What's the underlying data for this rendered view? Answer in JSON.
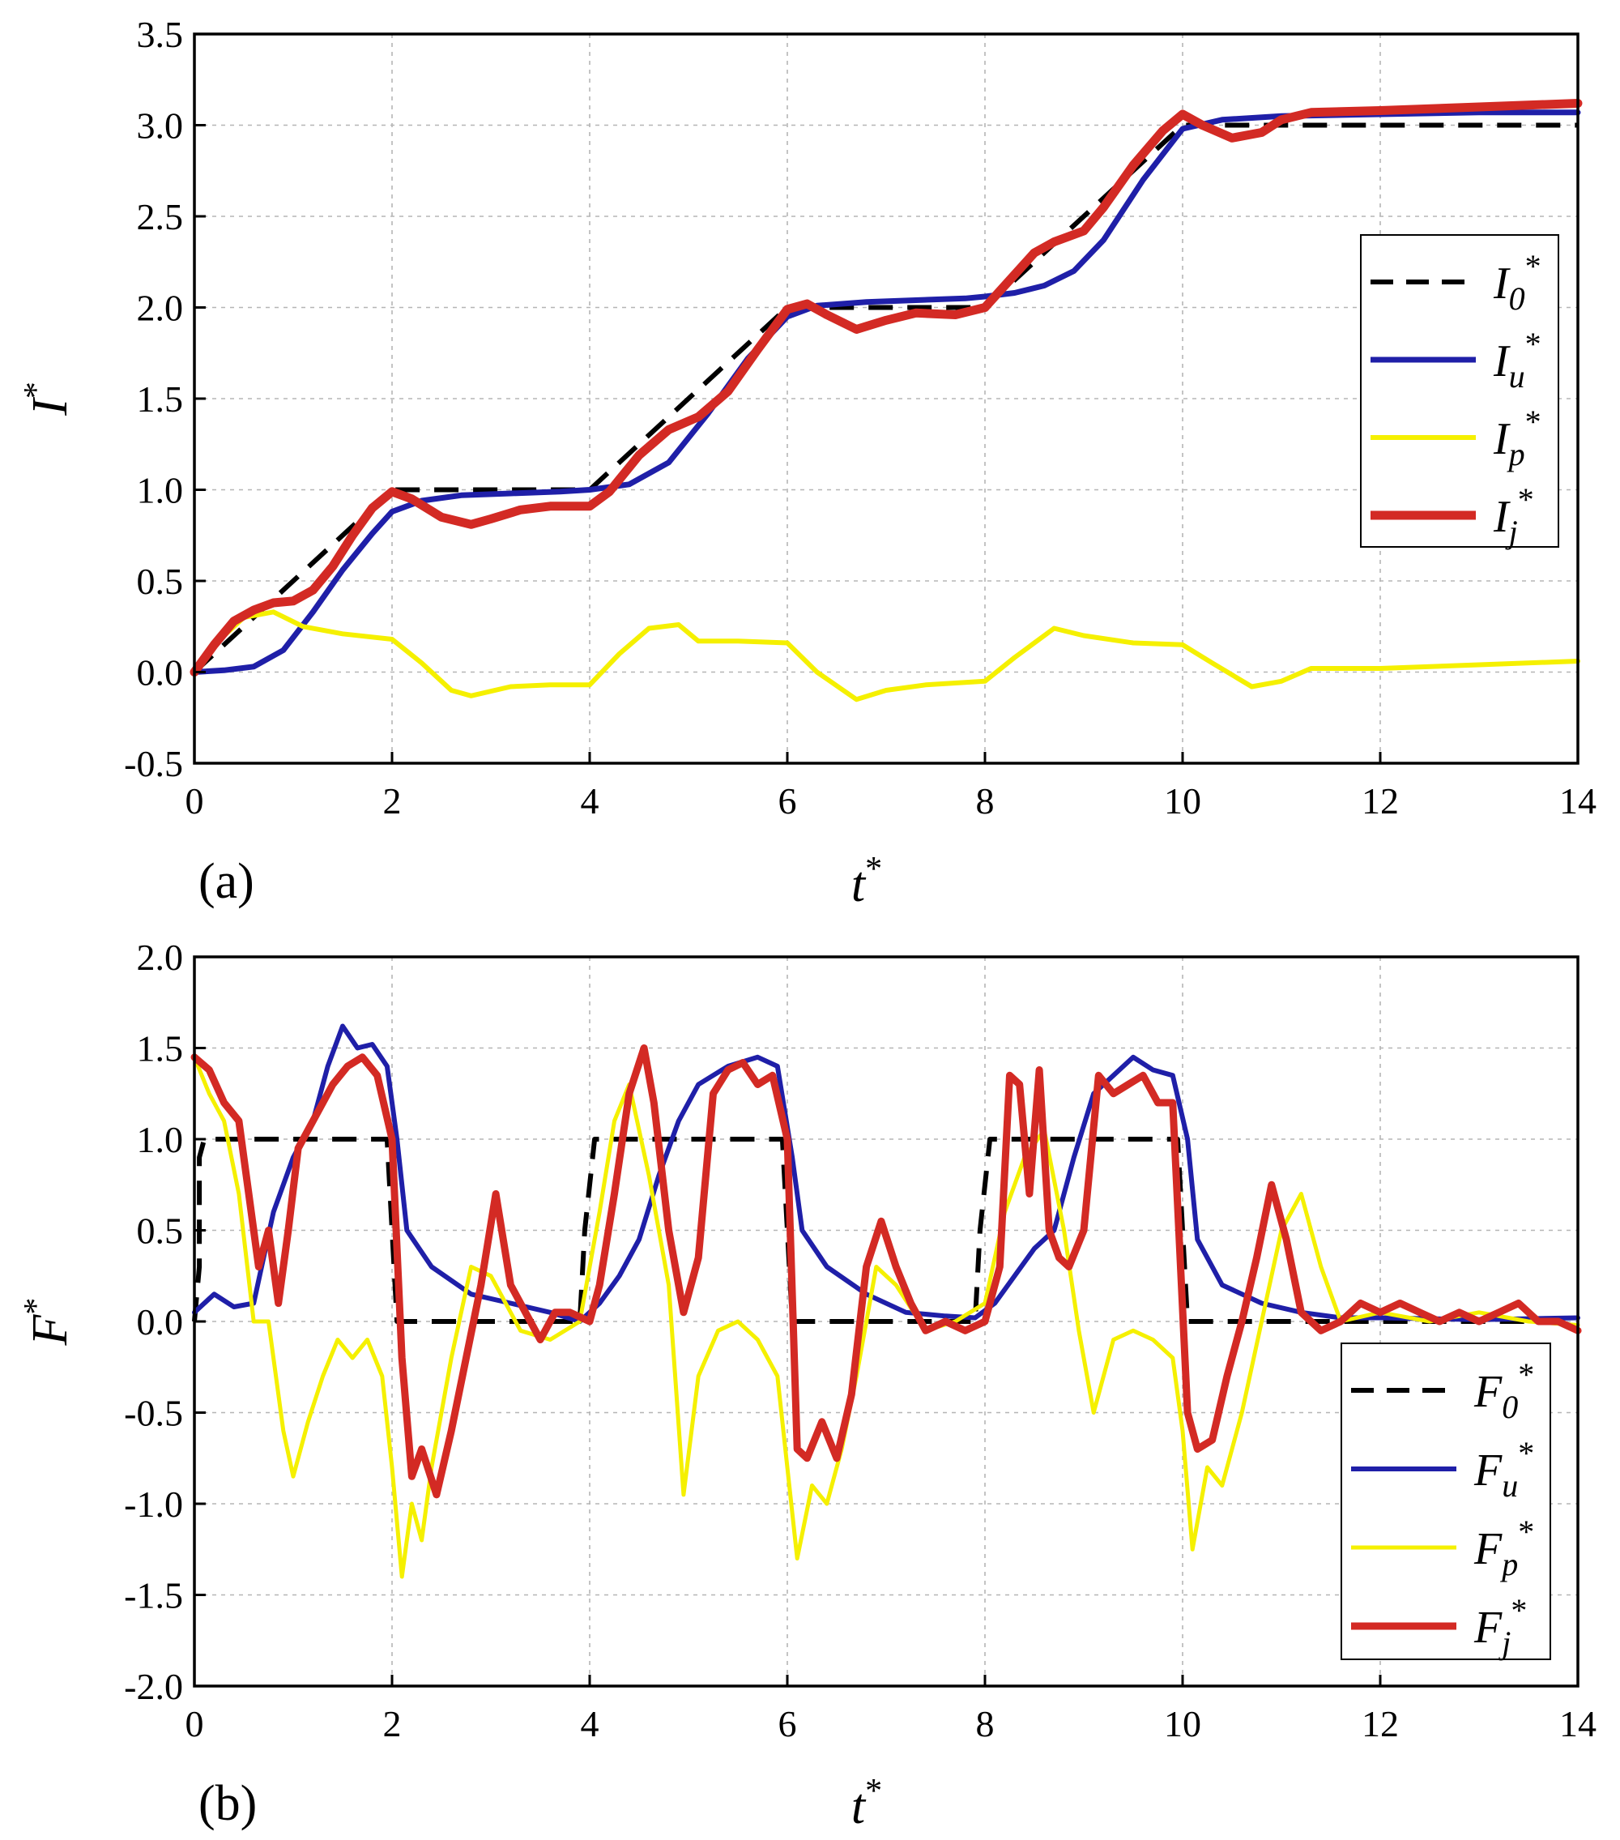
{
  "figure": {
    "panels": [
      "(a)",
      "(b)"
    ]
  },
  "colors": {
    "i0": "#000000",
    "iu": "#1f1fa8",
    "ip": "#f5f000",
    "ij": "#d32a24"
  },
  "chart_data": [
    {
      "type": "line",
      "panel": "(a)",
      "xlabel": "t",
      "xlabel_sup": "*",
      "ylabel": "I",
      "ylabel_sup": "*",
      "xlim": [
        0,
        14
      ],
      "ylim": [
        -0.5,
        3.5
      ],
      "xticks": [
        "0",
        "2",
        "4",
        "6",
        "8",
        "10",
        "12",
        "14"
      ],
      "yticks": [
        "-0.5",
        "0.0",
        "0.5",
        "1.0",
        "1.5",
        "2.0",
        "2.5",
        "3.0",
        "3.5"
      ],
      "grid": true,
      "legend_position": "right",
      "series": [
        {
          "key": "i0",
          "name": "I",
          "sub": "0",
          "sup": "*",
          "style": "dashed",
          "x": [
            0,
            2,
            4,
            6,
            8,
            10,
            14
          ],
          "y": [
            0,
            1,
            1,
            2,
            2,
            3,
            3
          ]
        },
        {
          "key": "iu",
          "name": "I",
          "sub": "u",
          "sup": "*",
          "style": "solid",
          "x": [
            0,
            0.3,
            0.6,
            0.9,
            1.2,
            1.5,
            1.8,
            2.0,
            2.3,
            2.7,
            3.2,
            3.7,
            4.0,
            4.4,
            4.8,
            5.2,
            5.6,
            6.0,
            6.3,
            6.8,
            7.3,
            7.8,
            8.0,
            8.3,
            8.6,
            8.9,
            9.2,
            9.6,
            10.0,
            10.4,
            11.0,
            12.0,
            13.0,
            14.0
          ],
          "y": [
            0,
            0.01,
            0.03,
            0.12,
            0.33,
            0.56,
            0.76,
            0.88,
            0.94,
            0.97,
            0.98,
            0.99,
            1.0,
            1.03,
            1.15,
            1.42,
            1.72,
            1.95,
            2.01,
            2.03,
            2.04,
            2.05,
            2.06,
            2.08,
            2.12,
            2.2,
            2.37,
            2.7,
            2.98,
            3.03,
            3.05,
            3.06,
            3.07,
            3.07
          ]
        },
        {
          "key": "ip",
          "name": "I",
          "sub": "p",
          "sup": "*",
          "style": "solid",
          "x": [
            0,
            0.3,
            0.5,
            0.8,
            1.1,
            1.5,
            2.0,
            2.3,
            2.6,
            2.8,
            3.2,
            3.6,
            4.0,
            4.3,
            4.6,
            4.9,
            5.1,
            5.5,
            6.0,
            6.3,
            6.7,
            7.0,
            7.4,
            8.0,
            8.3,
            8.7,
            9.0,
            9.5,
            10.0,
            10.3,
            10.7,
            11.0,
            11.3,
            12.0,
            13.0,
            14.0
          ],
          "y": [
            0,
            0.2,
            0.3,
            0.33,
            0.25,
            0.21,
            0.18,
            0.05,
            -0.1,
            -0.13,
            -0.08,
            -0.07,
            -0.07,
            0.1,
            0.24,
            0.26,
            0.17,
            0.17,
            0.16,
            0.0,
            -0.15,
            -0.1,
            -0.07,
            -0.05,
            0.08,
            0.24,
            0.2,
            0.16,
            0.15,
            0.05,
            -0.08,
            -0.05,
            0.02,
            0.02,
            0.04,
            0.06
          ]
        },
        {
          "key": "ij",
          "name": "I",
          "sub": "j",
          "sup": "*",
          "style": "solid",
          "x": [
            0,
            0.2,
            0.4,
            0.6,
            0.8,
            1.0,
            1.2,
            1.4,
            1.6,
            1.8,
            2.0,
            2.2,
            2.5,
            2.8,
            3.0,
            3.3,
            3.6,
            4.0,
            4.2,
            4.5,
            4.8,
            5.1,
            5.4,
            5.7,
            6.0,
            6.2,
            6.4,
            6.7,
            7.0,
            7.3,
            7.7,
            8.0,
            8.2,
            8.5,
            8.7,
            9.0,
            9.2,
            9.5,
            9.8,
            10.0,
            10.2,
            10.5,
            10.8,
            11.0,
            11.3,
            12.0,
            13.0,
            14.0
          ],
          "y": [
            0,
            0.15,
            0.28,
            0.34,
            0.38,
            0.39,
            0.45,
            0.58,
            0.75,
            0.9,
            0.99,
            0.95,
            0.85,
            0.81,
            0.84,
            0.89,
            0.91,
            0.91,
            0.99,
            1.19,
            1.33,
            1.4,
            1.54,
            1.77,
            1.99,
            2.02,
            1.96,
            1.88,
            1.93,
            1.97,
            1.96,
            2.0,
            2.12,
            2.3,
            2.36,
            2.42,
            2.55,
            2.78,
            2.97,
            3.06,
            3.0,
            2.93,
            2.96,
            3.03,
            3.07,
            3.08,
            3.1,
            3.12
          ]
        }
      ]
    },
    {
      "type": "line",
      "panel": "(b)",
      "xlabel": "t",
      "xlabel_sup": "*",
      "ylabel": "F",
      "ylabel_sup": "*",
      "xlim": [
        0,
        14
      ],
      "ylim": [
        -2.0,
        2.0
      ],
      "xticks": [
        "0",
        "2",
        "4",
        "6",
        "8",
        "10",
        "12",
        "14"
      ],
      "yticks": [
        "-2.0",
        "-1.5",
        "-1.0",
        "-0.5",
        "0.0",
        "0.5",
        "1.0",
        "1.5",
        "2.0"
      ],
      "grid": true,
      "legend_position": "bottom-right",
      "series": [
        {
          "key": "i0",
          "name": "F",
          "sub": "0",
          "sup": "*",
          "style": "dashed",
          "x": [
            0,
            0.05,
            0.05,
            0.1,
            0.1,
            1.95,
            2.0,
            2.05,
            2.1,
            3.9,
            3.95,
            4.05,
            4.1,
            5.95,
            6.0,
            6.05,
            6.1,
            7.9,
            7.95,
            8.05,
            8.1,
            9.95,
            10.0,
            10.05,
            10.1,
            14.0
          ],
          "y": [
            0,
            0.3,
            0.9,
            1.0,
            1.0,
            1.0,
            0.5,
            0.0,
            0.0,
            0.0,
            0.5,
            1.0,
            1.0,
            1.0,
            0.5,
            0.0,
            0.0,
            0.0,
            0.5,
            1.0,
            1.0,
            1.0,
            0.5,
            0.0,
            0.0,
            0.0
          ]
        },
        {
          "key": "iu",
          "name": "F",
          "sub": "u",
          "sup": "*",
          "style": "solid",
          "x": [
            0,
            0.2,
            0.4,
            0.6,
            0.8,
            1.0,
            1.2,
            1.35,
            1.5,
            1.65,
            1.8,
            1.95,
            2.05,
            2.15,
            2.4,
            2.8,
            3.2,
            3.6,
            3.9,
            4.1,
            4.3,
            4.5,
            4.7,
            4.9,
            5.1,
            5.4,
            5.7,
            5.9,
            6.05,
            6.15,
            6.4,
            6.8,
            7.2,
            7.6,
            7.9,
            8.1,
            8.3,
            8.5,
            8.7,
            8.9,
            9.1,
            9.3,
            9.5,
            9.7,
            9.9,
            10.05,
            10.15,
            10.4,
            10.8,
            11.2,
            11.6,
            12.0,
            13.0,
            14.0
          ],
          "y": [
            0.05,
            0.15,
            0.08,
            0.1,
            0.6,
            0.9,
            1.1,
            1.4,
            1.62,
            1.5,
            1.52,
            1.4,
            1.0,
            0.5,
            0.3,
            0.15,
            0.1,
            0.05,
            0.0,
            0.1,
            0.25,
            0.45,
            0.8,
            1.1,
            1.3,
            1.4,
            1.45,
            1.4,
            0.9,
            0.5,
            0.3,
            0.15,
            0.05,
            0.03,
            0.02,
            0.1,
            0.25,
            0.4,
            0.5,
            0.9,
            1.25,
            1.35,
            1.45,
            1.38,
            1.35,
            1.0,
            0.45,
            0.2,
            0.1,
            0.05,
            0.02,
            0.02,
            0.01,
            0.02
          ]
        },
        {
          "key": "ip",
          "name": "F",
          "sub": "p",
          "sup": "*",
          "style": "solid",
          "x": [
            0,
            0.15,
            0.3,
            0.45,
            0.6,
            0.75,
            0.9,
            1.0,
            1.15,
            1.3,
            1.45,
            1.6,
            1.75,
            1.9,
            2.0,
            2.1,
            2.2,
            2.3,
            2.4,
            2.6,
            2.8,
            3.0,
            3.3,
            3.6,
            3.9,
            4.1,
            4.25,
            4.4,
            4.6,
            4.8,
            4.95,
            5.1,
            5.3,
            5.5,
            5.7,
            5.9,
            6.0,
            6.1,
            6.25,
            6.4,
            6.55,
            6.7,
            6.9,
            7.1,
            7.4,
            7.7,
            8.0,
            8.2,
            8.4,
            8.6,
            8.8,
            8.95,
            9.1,
            9.3,
            9.5,
            9.7,
            9.9,
            10.0,
            10.1,
            10.25,
            10.4,
            10.6,
            10.8,
            11.0,
            11.2,
            11.4,
            11.6,
            12.0,
            12.5,
            13.0,
            13.5,
            14.0
          ],
          "y": [
            1.45,
            1.25,
            1.1,
            0.7,
            0.0,
            0.0,
            -0.6,
            -0.85,
            -0.55,
            -0.3,
            -0.1,
            -0.2,
            -0.1,
            -0.3,
            -0.8,
            -1.4,
            -1.0,
            -1.2,
            -0.8,
            -0.2,
            0.3,
            0.25,
            -0.05,
            -0.1,
            0.0,
            0.6,
            1.1,
            1.3,
            0.8,
            0.2,
            -0.95,
            -0.3,
            -0.05,
            0.0,
            -0.1,
            -0.3,
            -0.8,
            -1.3,
            -0.9,
            -1.0,
            -0.7,
            -0.3,
            0.3,
            0.2,
            -0.05,
            0.0,
            0.1,
            0.6,
            0.9,
            1.05,
            0.5,
            -0.05,
            -0.5,
            -0.1,
            -0.05,
            -0.1,
            -0.2,
            -0.6,
            -1.25,
            -0.8,
            -0.9,
            -0.5,
            0.0,
            0.5,
            0.7,
            0.3,
            0.0,
            0.05,
            0.0,
            0.05,
            0.0,
            -0.02
          ]
        },
        {
          "key": "ij",
          "name": "F",
          "sub": "j",
          "sup": "*",
          "style": "solid",
          "x": [
            0,
            0.15,
            0.3,
            0.45,
            0.55,
            0.65,
            0.75,
            0.85,
            0.95,
            1.05,
            1.2,
            1.4,
            1.55,
            1.7,
            1.85,
            2.0,
            2.1,
            2.2,
            2.3,
            2.45,
            2.6,
            2.75,
            2.9,
            3.05,
            3.2,
            3.35,
            3.5,
            3.65,
            3.8,
            4.0,
            4.1,
            4.25,
            4.4,
            4.55,
            4.65,
            4.8,
            4.95,
            5.1,
            5.25,
            5.4,
            5.55,
            5.7,
            5.85,
            6.0,
            6.1,
            6.2,
            6.35,
            6.5,
            6.65,
            6.8,
            6.95,
            7.1,
            7.25,
            7.4,
            7.6,
            7.8,
            8.0,
            8.15,
            8.25,
            8.35,
            8.45,
            8.55,
            8.65,
            8.75,
            8.85,
            9.0,
            9.15,
            9.3,
            9.45,
            9.6,
            9.75,
            9.9,
            10.05,
            10.15,
            10.3,
            10.45,
            10.6,
            10.75,
            10.9,
            11.05,
            11.2,
            11.4,
            11.6,
            11.8,
            12.0,
            12.2,
            12.4,
            12.6,
            12.8,
            13.0,
            13.2,
            13.4,
            13.6,
            13.8,
            14.0
          ],
          "y": [
            1.45,
            1.38,
            1.2,
            1.1,
            0.7,
            0.3,
            0.5,
            0.1,
            0.5,
            0.95,
            1.1,
            1.3,
            1.4,
            1.45,
            1.35,
            1.0,
            -0.2,
            -0.85,
            -0.7,
            -0.95,
            -0.6,
            -0.2,
            0.2,
            0.7,
            0.2,
            0.05,
            -0.1,
            0.05,
            0.05,
            0.0,
            0.2,
            0.7,
            1.25,
            1.5,
            1.2,
            0.5,
            0.05,
            0.35,
            1.25,
            1.38,
            1.42,
            1.3,
            1.35,
            1.0,
            -0.7,
            -0.75,
            -0.55,
            -0.75,
            -0.4,
            0.3,
            0.55,
            0.3,
            0.1,
            -0.05,
            0.0,
            -0.05,
            0.0,
            0.3,
            1.35,
            1.3,
            0.7,
            1.38,
            0.5,
            0.35,
            0.3,
            0.5,
            1.35,
            1.25,
            1.3,
            1.35,
            1.2,
            1.2,
            -0.5,
            -0.7,
            -0.65,
            -0.3,
            0.0,
            0.35,
            0.75,
            0.45,
            0.05,
            -0.05,
            0.0,
            0.1,
            0.05,
            0.1,
            0.05,
            0.0,
            0.05,
            0.0,
            0.05,
            0.1,
            0.0,
            0.0,
            -0.05
          ]
        }
      ]
    }
  ]
}
